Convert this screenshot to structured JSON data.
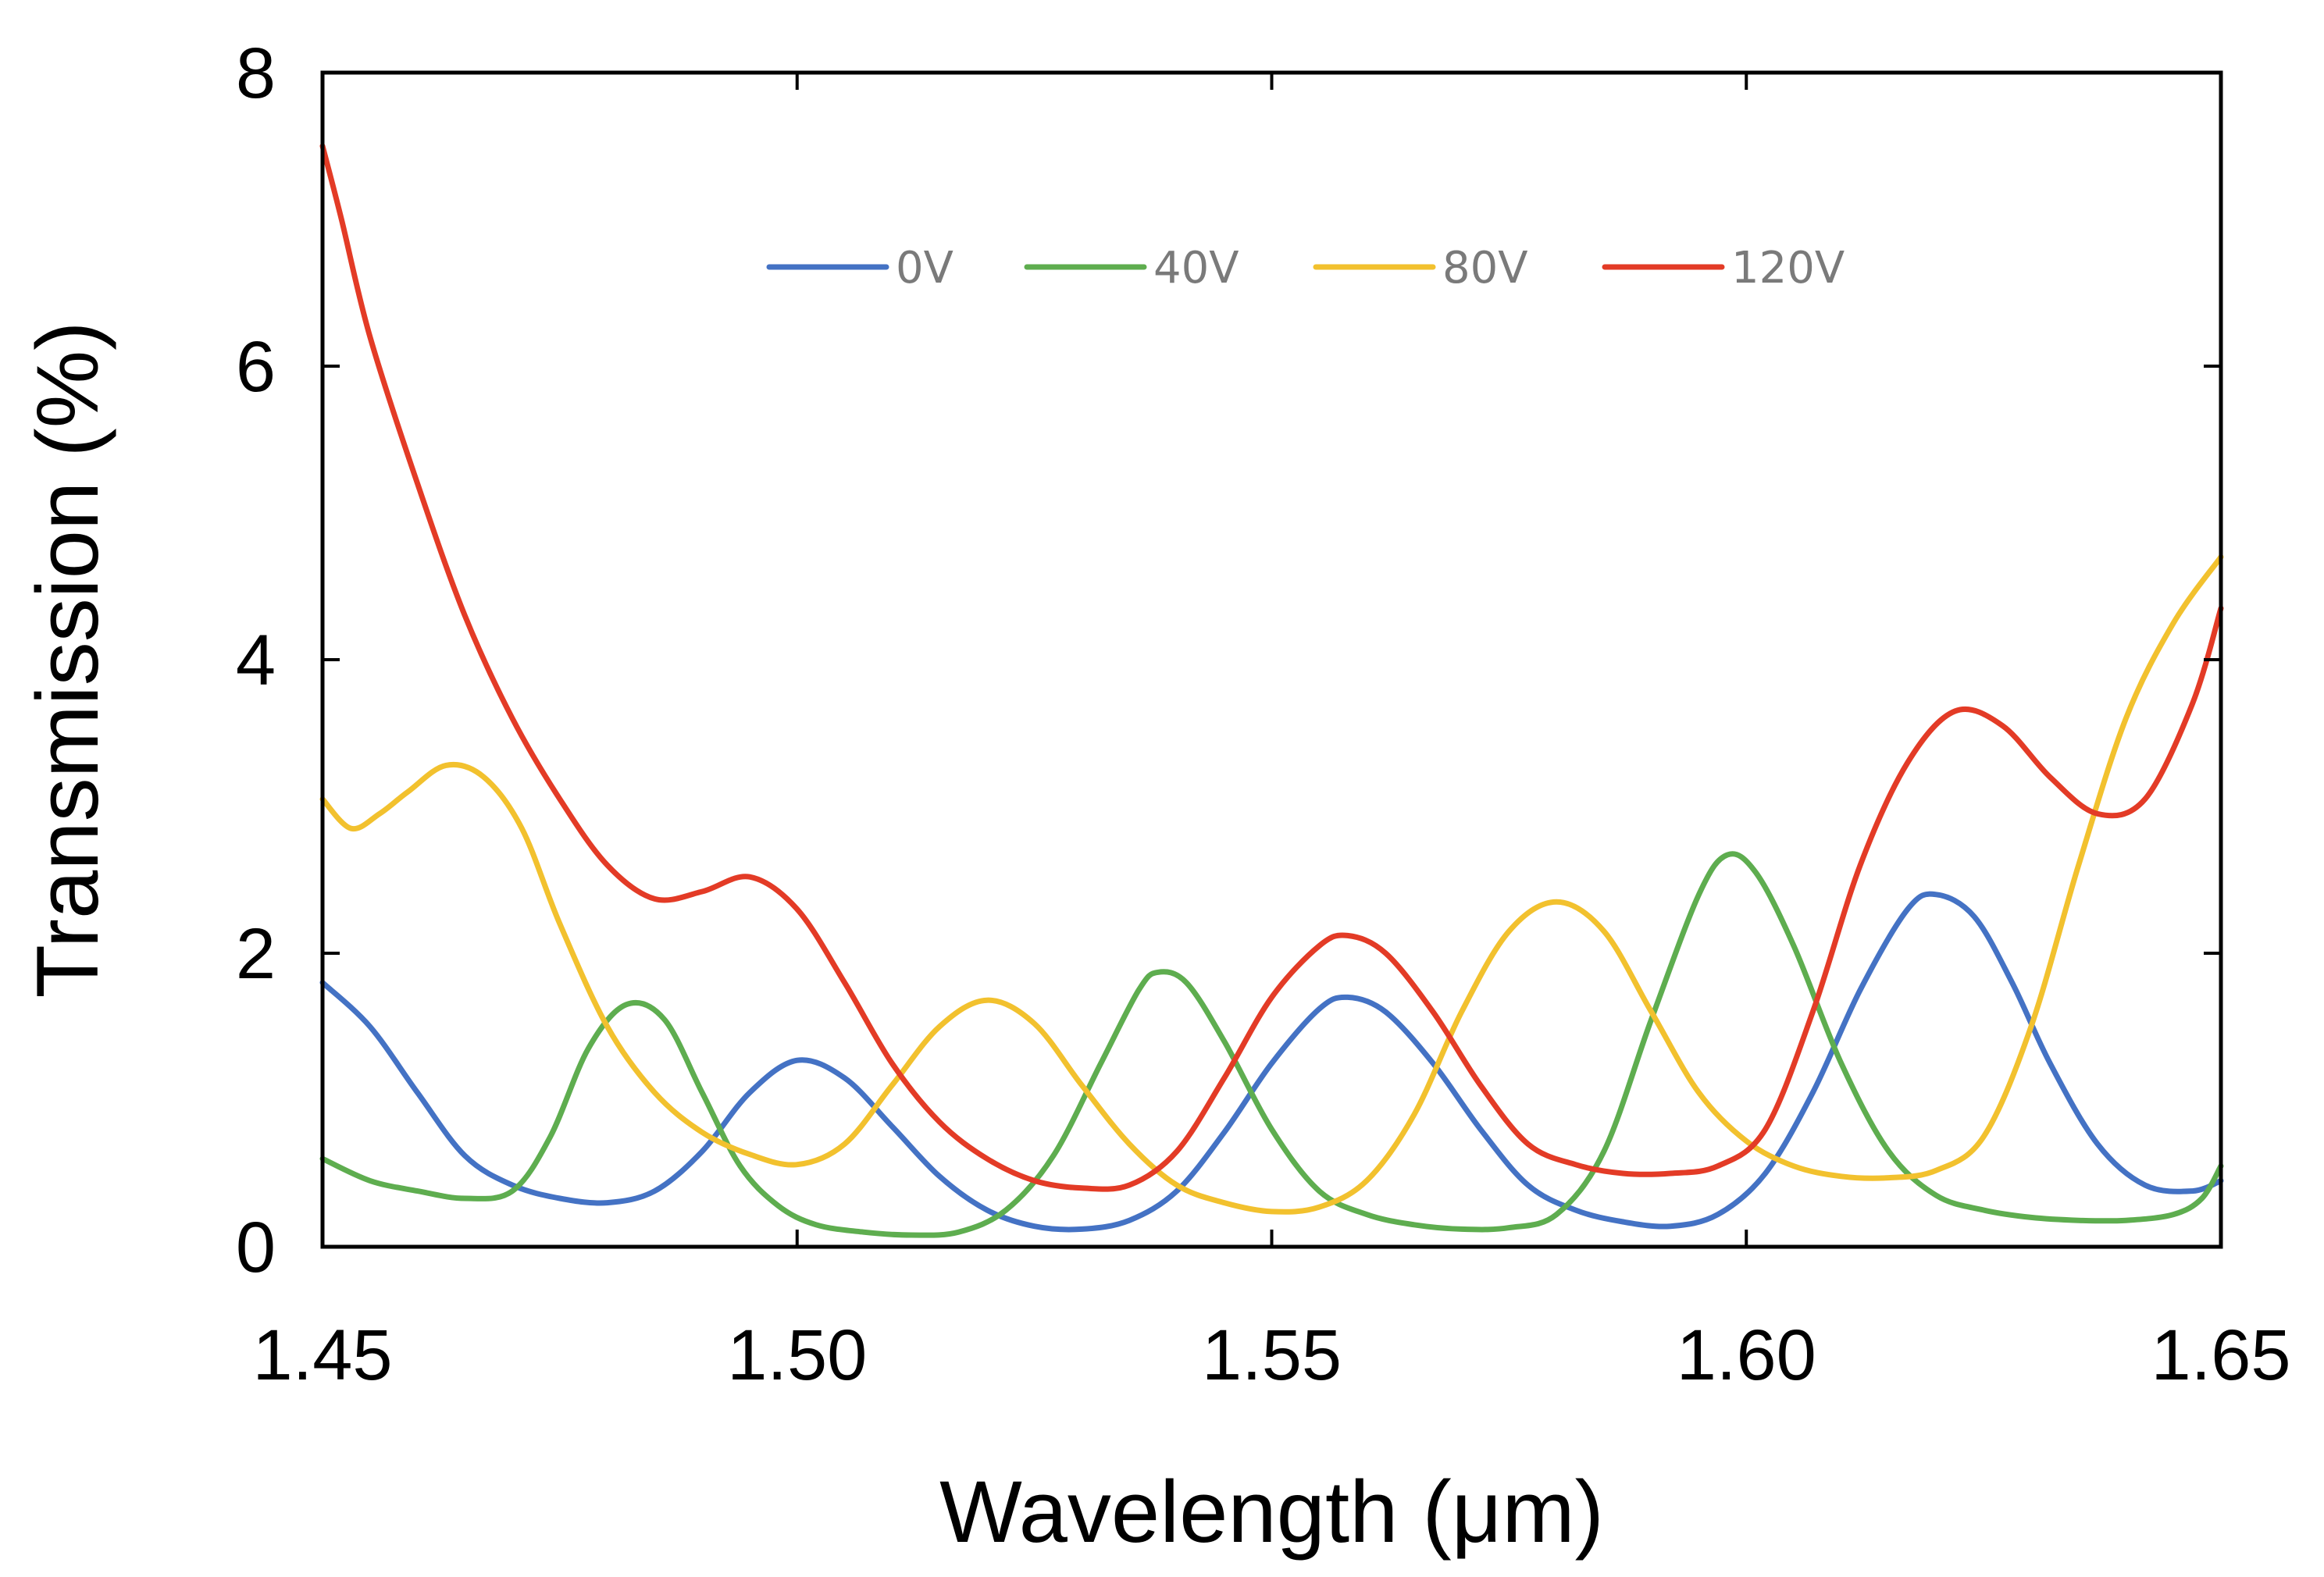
{
  "chart_data": {
    "type": "line",
    "title": "",
    "xlabel": "Wavelength (μm)",
    "ylabel": "Transmission (%)",
    "xlim": [
      1.45,
      1.65
    ],
    "ylim": [
      0,
      8
    ],
    "x_ticks": [
      1.45,
      1.5,
      1.55,
      1.6,
      1.65
    ],
    "x_tick_labels": [
      "1.45",
      "1.50",
      "1.55",
      "1.60",
      "1.65"
    ],
    "y_ticks": [
      0,
      2,
      4,
      6,
      8
    ],
    "y_tick_labels": [
      "0",
      "2",
      "4",
      "6",
      "8"
    ],
    "grid": false,
    "legend_position": "top-center",
    "series": [
      {
        "name": "0V",
        "color": "#4472C4",
        "points": [
          [
            1.45,
            1.8
          ],
          [
            1.455,
            1.5
          ],
          [
            1.46,
            1.05
          ],
          [
            1.465,
            0.62
          ],
          [
            1.47,
            0.42
          ],
          [
            1.475,
            0.33
          ],
          [
            1.48,
            0.3
          ],
          [
            1.485,
            0.38
          ],
          [
            1.49,
            0.65
          ],
          [
            1.495,
            1.05
          ],
          [
            1.5,
            1.27
          ],
          [
            1.505,
            1.15
          ],
          [
            1.51,
            0.82
          ],
          [
            1.515,
            0.48
          ],
          [
            1.52,
            0.25
          ],
          [
            1.525,
            0.14
          ],
          [
            1.53,
            0.12
          ],
          [
            1.535,
            0.18
          ],
          [
            1.54,
            0.38
          ],
          [
            1.545,
            0.78
          ],
          [
            1.55,
            1.25
          ],
          [
            1.555,
            1.62
          ],
          [
            1.558,
            1.7
          ],
          [
            1.562,
            1.6
          ],
          [
            1.567,
            1.25
          ],
          [
            1.572,
            0.8
          ],
          [
            1.577,
            0.42
          ],
          [
            1.582,
            0.25
          ],
          [
            1.587,
            0.17
          ],
          [
            1.592,
            0.14
          ],
          [
            1.597,
            0.22
          ],
          [
            1.602,
            0.5
          ],
          [
            1.607,
            1.05
          ],
          [
            1.612,
            1.75
          ],
          [
            1.617,
            2.3
          ],
          [
            1.62,
            2.4
          ],
          [
            1.624,
            2.25
          ],
          [
            1.628,
            1.8
          ],
          [
            1.632,
            1.25
          ],
          [
            1.637,
            0.7
          ],
          [
            1.642,
            0.42
          ],
          [
            1.647,
            0.38
          ],
          [
            1.65,
            0.45
          ]
        ]
      },
      {
        "name": "40V",
        "color": "#5EAD4F",
        "points": [
          [
            1.45,
            0.6
          ],
          [
            1.455,
            0.45
          ],
          [
            1.46,
            0.38
          ],
          [
            1.465,
            0.33
          ],
          [
            1.47,
            0.38
          ],
          [
            1.474,
            0.75
          ],
          [
            1.478,
            1.35
          ],
          [
            1.482,
            1.65
          ],
          [
            1.486,
            1.55
          ],
          [
            1.49,
            1.05
          ],
          [
            1.494,
            0.55
          ],
          [
            1.498,
            0.28
          ],
          [
            1.502,
            0.15
          ],
          [
            1.507,
            0.1
          ],
          [
            1.512,
            0.08
          ],
          [
            1.517,
            0.1
          ],
          [
            1.522,
            0.25
          ],
          [
            1.527,
            0.62
          ],
          [
            1.532,
            1.25
          ],
          [
            1.536,
            1.75
          ],
          [
            1.538,
            1.87
          ],
          [
            1.541,
            1.8
          ],
          [
            1.545,
            1.4
          ],
          [
            1.55,
            0.8
          ],
          [
            1.555,
            0.38
          ],
          [
            1.56,
            0.22
          ],
          [
            1.565,
            0.15
          ],
          [
            1.57,
            0.12
          ],
          [
            1.575,
            0.13
          ],
          [
            1.58,
            0.22
          ],
          [
            1.585,
            0.65
          ],
          [
            1.59,
            1.55
          ],
          [
            1.595,
            2.4
          ],
          [
            1.598,
            2.67
          ],
          [
            1.601,
            2.55
          ],
          [
            1.605,
            2.05
          ],
          [
            1.61,
            1.25
          ],
          [
            1.615,
            0.65
          ],
          [
            1.62,
            0.35
          ],
          [
            1.625,
            0.25
          ],
          [
            1.63,
            0.2
          ],
          [
            1.635,
            0.18
          ],
          [
            1.64,
            0.18
          ],
          [
            1.645,
            0.22
          ],
          [
            1.648,
            0.33
          ],
          [
            1.65,
            0.55
          ]
        ]
      },
      {
        "name": "80V",
        "color": "#F2C12E",
        "points": [
          [
            1.45,
            3.05
          ],
          [
            1.453,
            2.85
          ],
          [
            1.456,
            2.95
          ],
          [
            1.459,
            3.1
          ],
          [
            1.463,
            3.28
          ],
          [
            1.467,
            3.2
          ],
          [
            1.471,
            2.85
          ],
          [
            1.475,
            2.2
          ],
          [
            1.48,
            1.5
          ],
          [
            1.485,
            1.05
          ],
          [
            1.49,
            0.78
          ],
          [
            1.495,
            0.63
          ],
          [
            1.5,
            0.56
          ],
          [
            1.505,
            0.7
          ],
          [
            1.51,
            1.1
          ],
          [
            1.515,
            1.5
          ],
          [
            1.52,
            1.68
          ],
          [
            1.525,
            1.52
          ],
          [
            1.53,
            1.1
          ],
          [
            1.535,
            0.7
          ],
          [
            1.54,
            0.42
          ],
          [
            1.545,
            0.3
          ],
          [
            1.55,
            0.24
          ],
          [
            1.555,
            0.27
          ],
          [
            1.56,
            0.45
          ],
          [
            1.565,
            0.9
          ],
          [
            1.57,
            1.6
          ],
          [
            1.575,
            2.15
          ],
          [
            1.58,
            2.35
          ],
          [
            1.585,
            2.15
          ],
          [
            1.59,
            1.6
          ],
          [
            1.595,
            1.05
          ],
          [
            1.6,
            0.72
          ],
          [
            1.605,
            0.55
          ],
          [
            1.61,
            0.48
          ],
          [
            1.615,
            0.47
          ],
          [
            1.62,
            0.52
          ],
          [
            1.625,
            0.75
          ],
          [
            1.63,
            1.5
          ],
          [
            1.635,
            2.6
          ],
          [
            1.64,
            3.6
          ],
          [
            1.645,
            4.25
          ],
          [
            1.65,
            4.7
          ]
        ]
      },
      {
        "name": "120V",
        "color": "#E33B26",
        "points": [
          [
            1.45,
            7.5
          ],
          [
            1.452,
            7.0
          ],
          [
            1.455,
            6.2
          ],
          [
            1.46,
            5.2
          ],
          [
            1.465,
            4.3
          ],
          [
            1.47,
            3.6
          ],
          [
            1.475,
            3.05
          ],
          [
            1.48,
            2.6
          ],
          [
            1.485,
            2.37
          ],
          [
            1.49,
            2.42
          ],
          [
            1.495,
            2.52
          ],
          [
            1.5,
            2.3
          ],
          [
            1.505,
            1.8
          ],
          [
            1.51,
            1.25
          ],
          [
            1.515,
            0.85
          ],
          [
            1.52,
            0.6
          ],
          [
            1.525,
            0.45
          ],
          [
            1.53,
            0.4
          ],
          [
            1.535,
            0.42
          ],
          [
            1.54,
            0.65
          ],
          [
            1.545,
            1.15
          ],
          [
            1.55,
            1.7
          ],
          [
            1.555,
            2.05
          ],
          [
            1.558,
            2.12
          ],
          [
            1.562,
            2.0
          ],
          [
            1.567,
            1.6
          ],
          [
            1.572,
            1.1
          ],
          [
            1.577,
            0.7
          ],
          [
            1.582,
            0.56
          ],
          [
            1.587,
            0.5
          ],
          [
            1.592,
            0.5
          ],
          [
            1.597,
            0.55
          ],
          [
            1.602,
            0.8
          ],
          [
            1.607,
            1.6
          ],
          [
            1.612,
            2.6
          ],
          [
            1.617,
            3.3
          ],
          [
            1.622,
            3.65
          ],
          [
            1.627,
            3.55
          ],
          [
            1.632,
            3.2
          ],
          [
            1.637,
            2.95
          ],
          [
            1.642,
            3.05
          ],
          [
            1.647,
            3.7
          ],
          [
            1.65,
            4.35
          ]
        ]
      }
    ]
  }
}
